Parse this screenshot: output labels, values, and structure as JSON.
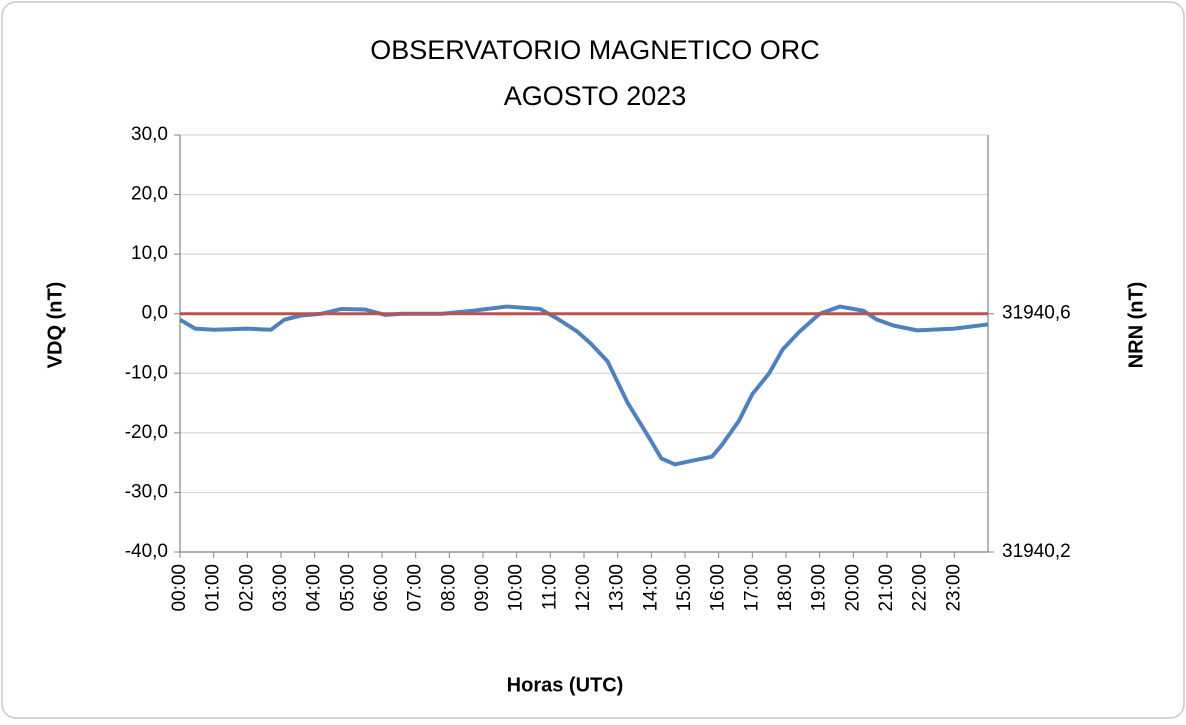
{
  "chart_data": {
    "type": "line",
    "title": [
      "OBSERVATORIO MAGNETICO ORC",
      "AGOSTO 2023"
    ],
    "x_label": "Horas (UTC)",
    "y_label": "VDQ (nT)",
    "y2_label": "NRN (nT)",
    "xlim": [
      0,
      24
    ],
    "xticks": [
      {
        "value": 0,
        "label": "00:00"
      },
      {
        "value": 1,
        "label": "01:00"
      },
      {
        "value": 2,
        "label": "02:00"
      },
      {
        "value": 3,
        "label": "03:00"
      },
      {
        "value": 4,
        "label": "04:00"
      },
      {
        "value": 5,
        "label": "05:00"
      },
      {
        "value": 6,
        "label": "06:00"
      },
      {
        "value": 7,
        "label": "07:00"
      },
      {
        "value": 8,
        "label": "08:00"
      },
      {
        "value": 9,
        "label": "09:00"
      },
      {
        "value": 10,
        "label": "10:00"
      },
      {
        "value": 11,
        "label": "11:00"
      },
      {
        "value": 12,
        "label": "12:00"
      },
      {
        "value": 13,
        "label": "13:00"
      },
      {
        "value": 14,
        "label": "14:00"
      },
      {
        "value": 15,
        "label": "15:00"
      },
      {
        "value": 16,
        "label": "16:00"
      },
      {
        "value": 17,
        "label": "17:00"
      },
      {
        "value": 18,
        "label": "18:00"
      },
      {
        "value": 19,
        "label": "19:00"
      },
      {
        "value": 20,
        "label": "20:00"
      },
      {
        "value": 21,
        "label": "21:00"
      },
      {
        "value": 22,
        "label": "22:00"
      },
      {
        "value": 23,
        "label": "23:00"
      }
    ],
    "ylim": [
      -40,
      30
    ],
    "yticks": [
      {
        "value": -40,
        "label": "-40,0"
      },
      {
        "value": -30,
        "label": "-30,0"
      },
      {
        "value": -20,
        "label": "-20,0"
      },
      {
        "value": -10,
        "label": "-10,0"
      },
      {
        "value": 0,
        "label": "0,0"
      },
      {
        "value": 10,
        "label": "10,0"
      },
      {
        "value": 20,
        "label": "20,0"
      },
      {
        "value": 30,
        "label": "30,0"
      }
    ],
    "y2lim": [
      31940.2,
      31940.9
    ],
    "y2ticks": [
      {
        "value": 31940.2,
        "label": "31940,2"
      },
      {
        "value": 31940.6,
        "label": "31940,6"
      }
    ],
    "grid": true,
    "series": [
      {
        "color": "#4f81bd",
        "x": [
          0,
          0.45,
          1,
          1.5,
          2,
          2.7,
          3.1,
          3.6,
          4.2,
          4.8,
          5.5,
          6.1,
          6.6,
          7.8,
          8.7,
          9.7,
          10.7,
          11.2,
          11.8,
          12.2,
          12.7,
          13.3,
          13.9,
          14.3,
          14.7,
          15.2,
          15.8,
          16.1,
          16.6,
          17,
          17.5,
          17.9,
          18.4,
          19,
          19.6,
          20.3,
          20.7,
          21.2,
          21.9,
          23,
          24
        ],
        "values": [
          -1,
          -2.5,
          -2.7,
          -2.6,
          -2.5,
          -2.7,
          -1,
          -0.3,
          0,
          0.8,
          0.7,
          -0.2,
          0,
          0,
          0.5,
          1.2,
          0.8,
          -0.8,
          -3,
          -5,
          -8,
          -15,
          -20.5,
          -24.3,
          -25.3,
          -24.7,
          -24,
          -22,
          -18,
          -13.5,
          -10,
          -6,
          -3,
          0,
          1.2,
          0.5,
          -1,
          -2,
          -2.8,
          -2.5,
          -1.8
        ]
      },
      {
        "color": "#c0504d",
        "axis": "y2",
        "x": [
          0,
          24
        ],
        "values": [
          31940.6,
          31940.6
        ]
      }
    ]
  }
}
